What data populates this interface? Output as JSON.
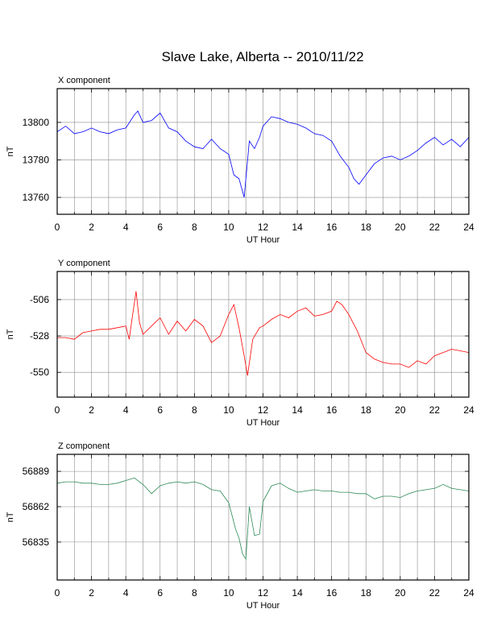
{
  "title": "Slave Lake, Alberta -- 2010/11/22",
  "chart_data": [
    {
      "type": "line",
      "panel": "X component",
      "xlabel": "UT Hour",
      "ylabel": "nT",
      "xlim": [
        0,
        24
      ],
      "ylim": [
        13751,
        13818
      ],
      "xticks": [
        0,
        2,
        4,
        6,
        8,
        10,
        12,
        14,
        16,
        18,
        20,
        22,
        24
      ],
      "yticks": [
        13760,
        13780,
        13800
      ],
      "grid": true,
      "color": "#0000ff",
      "series": [
        {
          "x": [
            0,
            0.5,
            1,
            1.5,
            2,
            2.5,
            3,
            3.5,
            4,
            4.5,
            4.7,
            5,
            5.5,
            6,
            6.5,
            7,
            7.5,
            8,
            8.5,
            9,
            9.5,
            10,
            10.3,
            10.6,
            10.9,
            11.2,
            11.5,
            11.8,
            12,
            12.5,
            13,
            13.5,
            14,
            14.5,
            15,
            15.5,
            16,
            16.5,
            17,
            17.3,
            17.6,
            18,
            18.5,
            19,
            19.5,
            20,
            20.5,
            21,
            21.5,
            22,
            22.5,
            23,
            23.5,
            24
          ],
          "y": [
            13795,
            13798,
            13794,
            13795,
            13797,
            13795,
            13794,
            13796,
            13797,
            13804,
            13806,
            13800,
            13801,
            13805,
            13797,
            13795,
            13790,
            13787,
            13786,
            13791,
            13786,
            13783,
            13772,
            13770,
            13760,
            13790,
            13786,
            13792,
            13798,
            13803,
            13802,
            13800,
            13799,
            13797,
            13794,
            13793,
            13790,
            13782,
            13776,
            13770,
            13767,
            13772,
            13778,
            13781,
            13782,
            13780,
            13782,
            13785,
            13789,
            13792,
            13788,
            13791,
            13787,
            13792
          ]
        }
      ]
    },
    {
      "type": "line",
      "panel": "Y component",
      "xlabel": "UT Hour",
      "ylabel": "nT",
      "xlim": [
        0,
        24
      ],
      "ylim": [
        -565,
        -489
      ],
      "xticks": [
        0,
        2,
        4,
        6,
        8,
        10,
        12,
        14,
        16,
        18,
        20,
        22,
        24
      ],
      "yticks": [
        -506,
        -528,
        -550
      ],
      "grid": true,
      "color": "#ff0000",
      "series": [
        {
          "x": [
            0,
            0.5,
            1,
            1.5,
            2,
            2.5,
            3,
            3.5,
            4,
            4.2,
            4.4,
            4.6,
            4.8,
            5,
            5.5,
            6,
            6.5,
            7,
            7.5,
            8,
            8.5,
            9,
            9.5,
            10,
            10.3,
            10.6,
            10.9,
            11.1,
            11.4,
            11.8,
            12,
            12.5,
            13,
            13.5,
            14,
            14.5,
            15,
            15.5,
            16,
            16.3,
            16.6,
            17,
            17.5,
            18,
            18.5,
            19,
            19.5,
            20,
            20.5,
            21,
            21.5,
            22,
            22.5,
            23,
            23.5,
            24
          ],
          "y": [
            -529,
            -529,
            -530,
            -526,
            -525,
            -524,
            -524,
            -523,
            -522,
            -530,
            -515,
            -501,
            -520,
            -527,
            -522,
            -517,
            -527,
            -519,
            -525,
            -518,
            -522,
            -532,
            -528,
            -515,
            -509,
            -523,
            -540,
            -552,
            -530,
            -523,
            -522,
            -518,
            -515,
            -517,
            -513,
            -511,
            -516,
            -515,
            -513,
            -507,
            -509,
            -515,
            -525,
            -538,
            -542,
            -544,
            -545,
            -545,
            -547,
            -543,
            -545,
            -540,
            -538,
            -536,
            -537,
            -538
          ]
        }
      ]
    },
    {
      "type": "line",
      "panel": "Z component",
      "xlabel": "UT Hour",
      "ylabel": "nT",
      "xlim": [
        0,
        24
      ],
      "ylim": [
        56806,
        56902
      ],
      "xticks": [
        0,
        2,
        4,
        6,
        8,
        10,
        12,
        14,
        16,
        18,
        20,
        22,
        24
      ],
      "yticks": [
        56835,
        56862,
        56889
      ],
      "grid": true,
      "color": "#2e8b57",
      "series": [
        {
          "x": [
            0,
            0.5,
            1,
            1.5,
            2,
            2.5,
            3,
            3.5,
            4,
            4.5,
            5,
            5.5,
            6,
            6.5,
            7,
            7.5,
            8,
            8.5,
            9,
            9.5,
            10,
            10.2,
            10.4,
            10.6,
            10.8,
            11,
            11.2,
            11.5,
            11.8,
            12,
            12.5,
            13,
            13.5,
            14,
            14.5,
            15,
            15.5,
            16,
            16.5,
            17,
            17.5,
            18,
            18.5,
            19,
            19.5,
            20,
            20.5,
            21,
            21.5,
            22,
            22.5,
            23,
            23.5,
            24
          ],
          "y": [
            56880,
            56881,
            56881,
            56880,
            56880,
            56879,
            56879,
            56880,
            56882,
            56884,
            56879,
            56872,
            56878,
            56880,
            56881,
            56880,
            56881,
            56879,
            56875,
            56874,
            56865,
            56855,
            56845,
            56838,
            56826,
            56822,
            56862,
            56840,
            56841,
            56866,
            56878,
            56880,
            56876,
            56873,
            56874,
            56875,
            56874,
            56874,
            56873,
            56873,
            56872,
            56872,
            56868,
            56870,
            56870,
            56869,
            56872,
            56874,
            56875,
            56876,
            56879,
            56876,
            56875,
            56874
          ]
        }
      ]
    }
  ]
}
